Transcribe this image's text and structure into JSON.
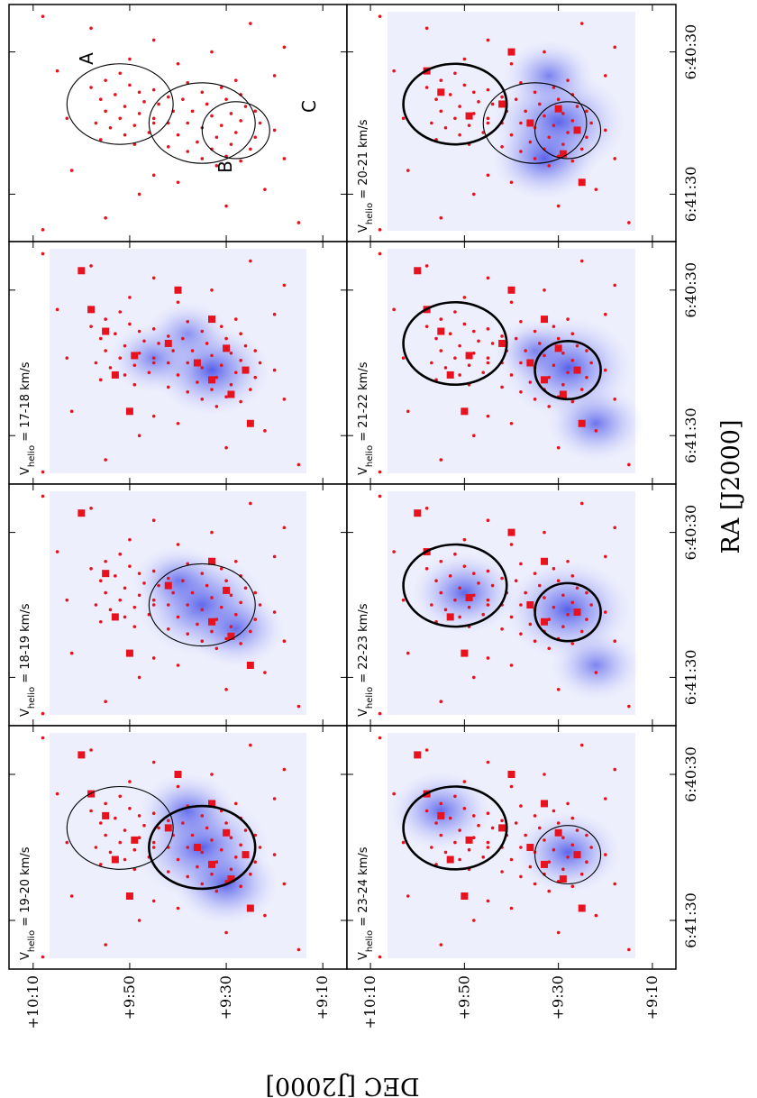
{
  "chart_data": {
    "type": "scatter",
    "xlabel": "RA [J2000]",
    "ylabel": "DEC [J2000]",
    "x_ticks": [
      "6:41:30",
      "6:40:30"
    ],
    "y_ticks": [
      "+10:10",
      "+9:50",
      "+9:30",
      "+9:10"
    ],
    "xlim": [
      "6:41:50",
      "6:40:10"
    ],
    "ylim": [
      "+9:05",
      "+10:15"
    ],
    "colors": {
      "stars": "#e8121e",
      "gas": "#3c46e6",
      "frame": "#000000"
    },
    "panels": [
      {
        "label": "",
        "gas": [],
        "labels": {
          "A": "A",
          "B": "B",
          "C": "C"
        },
        "regions": [
          {
            "id": "A",
            "bold": false
          },
          {
            "id": "B",
            "bold": false
          },
          {
            "id": "C",
            "bold": false
          }
        ]
      },
      {
        "label": "V",
        "sub": "helio",
        "rest": " = 17-18 km/s",
        "gas": [
          [
            "6:41:03",
            "+9:33",
            0.75
          ],
          [
            "6:40:58",
            "+9:45",
            0.4
          ],
          [
            "6:40:48",
            "+9:38",
            0.3
          ]
        ],
        "regions": []
      },
      {
        "label": "V",
        "sub": "helio",
        "rest": " = 18-19 km/s",
        "gas": [
          [
            "6:41:00",
            "+9:35",
            0.95
          ],
          [
            "6:41:10",
            "+9:28",
            0.5
          ],
          [
            "6:40:50",
            "+9:40",
            0.4
          ]
        ],
        "regions": [
          {
            "id": "B",
            "bold": false
          }
        ]
      },
      {
        "label": "V",
        "sub": "helio",
        "rest": " = 19-20 km/s",
        "gas": [
          [
            "6:41:00",
            "+9:35",
            1.0
          ],
          [
            "6:41:15",
            "+9:30",
            0.6
          ],
          [
            "6:40:45",
            "+9:38",
            0.5
          ]
        ],
        "regions": [
          {
            "id": "A",
            "bold": false
          },
          {
            "id": "B",
            "bold": true
          }
        ]
      },
      {
        "label": "V",
        "sub": "helio",
        "rest": " = 20-21 km/s",
        "gas": [
          [
            "6:41:00",
            "+9:30",
            1.0
          ],
          [
            "6:41:15",
            "+9:33",
            0.6
          ],
          [
            "6:40:40",
            "+9:32",
            0.4
          ]
        ],
        "regions": [
          {
            "id": "A",
            "bold": true
          },
          {
            "id": "B",
            "bold": false
          },
          {
            "id": "C",
            "bold": false
          }
        ]
      },
      {
        "label": "V",
        "sub": "helio",
        "rest": " = 21-22 km/s",
        "gas": [
          [
            "6:41:02",
            "+9:28",
            0.95
          ],
          [
            "6:41:25",
            "+9:22",
            0.5
          ],
          [
            "6:40:55",
            "+9:35",
            0.3
          ]
        ],
        "regions": [
          {
            "id": "A",
            "bold": true
          },
          {
            "id": "C",
            "bold": true
          }
        ]
      },
      {
        "label": "V",
        "sub": "helio",
        "rest": " = 22-23 km/s",
        "gas": [
          [
            "6:41:02",
            "+9:28",
            0.9
          ],
          [
            "6:40:55",
            "+9:50",
            0.6
          ],
          [
            "6:41:25",
            "+9:22",
            0.4
          ]
        ],
        "regions": [
          {
            "id": "A",
            "bold": true
          },
          {
            "id": "C",
            "bold": true
          }
        ]
      },
      {
        "label": "V",
        "sub": "helio",
        "rest": " = 23-24 km/s",
        "gas": [
          [
            "6:41:02",
            "+9:28",
            0.6
          ],
          [
            "6:40:45",
            "+9:55",
            0.55
          ]
        ],
        "regions": [
          {
            "id": "A",
            "bold": true
          },
          {
            "id": "C",
            "bold": false
          }
        ]
      }
    ],
    "regions": {
      "A": {
        "center": [
          "6:40:52",
          "+9:52"
        ],
        "half_width": "0:00:17",
        "half_height": "0:11"
      },
      "B": {
        "center": [
          "6:41:00",
          "+9:35"
        ],
        "half_width": "0:00:17",
        "half_height": "0:11"
      },
      "C": {
        "center": [
          "6:41:03",
          "+9:28"
        ],
        "half_width": "0:00:12",
        "half_height": "0:07"
      }
    },
    "stars": {
      "dots": [
        [
          "6:40:45",
          "+9:58"
        ],
        [
          "6:40:50",
          "+9:56"
        ],
        [
          "6:40:55",
          "+9:55"
        ],
        [
          "6:41:00",
          "+9:57"
        ],
        [
          "6:40:48",
          "+9:53"
        ],
        [
          "6:40:53",
          "+9:51"
        ],
        [
          "6:40:58",
          "+9:52"
        ],
        [
          "6:41:02",
          "+9:54"
        ],
        [
          "6:40:44",
          "+9:50"
        ],
        [
          "6:40:47",
          "+9:48"
        ],
        [
          "6:40:51",
          "+9:47"
        ],
        [
          "6:40:56",
          "+9:48"
        ],
        [
          "6:41:01",
          "+9:49"
        ],
        [
          "6:41:05",
          "+9:51"
        ],
        [
          "6:40:46",
          "+9:45"
        ],
        [
          "6:40:52",
          "+9:44"
        ],
        [
          "6:40:58",
          "+9:45"
        ],
        [
          "6:41:04",
          "+9:46"
        ],
        [
          "6:40:49",
          "+9:42"
        ],
        [
          "6:40:55",
          "+9:41"
        ],
        [
          "6:41:00",
          "+9:42"
        ],
        [
          "6:40:42",
          "+9:55"
        ],
        [
          "6:40:39",
          "+9:52"
        ],
        [
          "6:41:07",
          "+9:56"
        ],
        [
          "6:41:09",
          "+9:49"
        ],
        [
          "6:40:50",
          "+9:39"
        ],
        [
          "6:40:55",
          "+9:37"
        ],
        [
          "6:41:00",
          "+9:38"
        ],
        [
          "6:41:05",
          "+9:40"
        ],
        [
          "6:40:47",
          "+9:35"
        ],
        [
          "6:40:52",
          "+9:34"
        ],
        [
          "6:40:57",
          "+9:33"
        ],
        [
          "6:41:02",
          "+9:35"
        ],
        [
          "6:41:08",
          "+9:36"
        ],
        [
          "6:41:12",
          "+9:38"
        ],
        [
          "6:40:45",
          "+9:31"
        ],
        [
          "6:40:50",
          "+9:30"
        ],
        [
          "6:40:56",
          "+9:29"
        ],
        [
          "6:41:01",
          "+9:31"
        ],
        [
          "6:41:06",
          "+9:32"
        ],
        [
          "6:41:11",
          "+9:33"
        ],
        [
          "6:41:15",
          "+9:35"
        ],
        [
          "6:40:48",
          "+9:27"
        ],
        [
          "6:40:53",
          "+9:26"
        ],
        [
          "6:40:59",
          "+9:27"
        ],
        [
          "6:41:04",
          "+9:28"
        ],
        [
          "6:41:09",
          "+9:29"
        ],
        [
          "6:41:14",
          "+9:30"
        ],
        [
          "6:40:55",
          "+9:24"
        ],
        [
          "6:41:00",
          "+9:23"
        ],
        [
          "6:41:06",
          "+9:24"
        ],
        [
          "6:41:11",
          "+9:25"
        ],
        [
          "6:41:16",
          "+9:27"
        ],
        [
          "6:40:42",
          "+9:28"
        ],
        [
          "6:41:18",
          "+9:32"
        ],
        [
          "6:41:03",
          "+9:20"
        ],
        [
          "6:40:35",
          "+9:40"
        ],
        [
          "6:40:30",
          "+9:33"
        ],
        [
          "6:40:25",
          "+9:45"
        ],
        [
          "6:41:25",
          "+9:40"
        ],
        [
          "6:41:30",
          "+9:48"
        ],
        [
          "6:41:35",
          "+9:30"
        ],
        [
          "6:41:28",
          "+9:22"
        ],
        [
          "6:40:20",
          "+9:58"
        ],
        [
          "6:40:38",
          "+10:05"
        ],
        [
          "6:41:20",
          "+10:02"
        ],
        [
          "6:41:40",
          "+9:55"
        ],
        [
          "6:40:28",
          "+9:18"
        ],
        [
          "6:41:42",
          "+9:15"
        ],
        [
          "6:40:18",
          "+9:25"
        ],
        [
          "6:40:33",
          "+9:50"
        ],
        [
          "6:41:22",
          "+9:45"
        ],
        [
          "6:40:40",
          "+9:20"
        ],
        [
          "6:41:15",
          "+9:18"
        ],
        [
          "6:40:15",
          "+10:08"
        ],
        [
          "6:41:45",
          "+10:08"
        ],
        [
          "6:40:58",
          "+10:03"
        ],
        [
          "6:41:10",
          "+9:42"
        ],
        [
          "6:40:43",
          "+9:38"
        ],
        [
          "6:41:00",
          "+9:45"
        ]
      ],
      "squares": [
        [
          "6:40:47",
          "+9:55"
        ],
        [
          "6:40:57",
          "+9:49"
        ],
        [
          "6:41:05",
          "+9:53"
        ],
        [
          "6:40:52",
          "+9:42"
        ],
        [
          "6:41:00",
          "+9:36"
        ],
        [
          "6:41:07",
          "+9:33"
        ],
        [
          "6:40:54",
          "+9:30"
        ],
        [
          "6:41:03",
          "+9:26"
        ],
        [
          "6:40:42",
          "+9:33"
        ],
        [
          "6:41:13",
          "+9:29"
        ],
        [
          "6:40:38",
          "+9:58"
        ],
        [
          "6:41:20",
          "+9:50"
        ],
        [
          "6:41:25",
          "+9:25"
        ],
        [
          "6:40:30",
          "+9:40"
        ],
        [
          "6:40:22",
          "+10:00"
        ]
      ]
    }
  }
}
